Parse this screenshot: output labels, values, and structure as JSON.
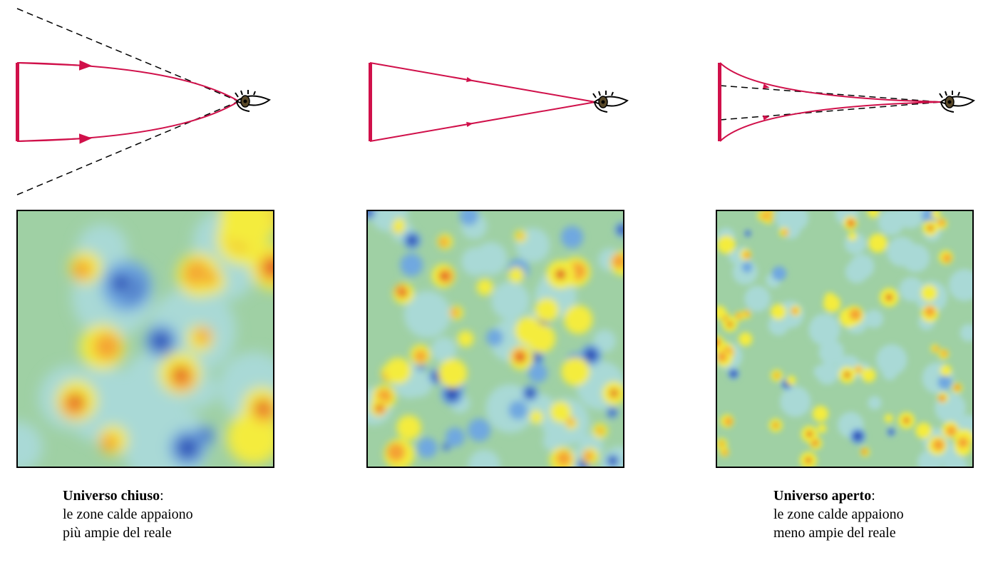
{
  "captions": [
    {
      "title": "Universo chiuso",
      "punct": ":",
      "lines": [
        "le zone calde appaiono",
        "più ampie del reale"
      ]
    },
    {
      "title": "Universo aperto",
      "punct": ":",
      "lines": [
        "le zone calde appaiono",
        "meno ampie del reale"
      ]
    }
  ]
}
